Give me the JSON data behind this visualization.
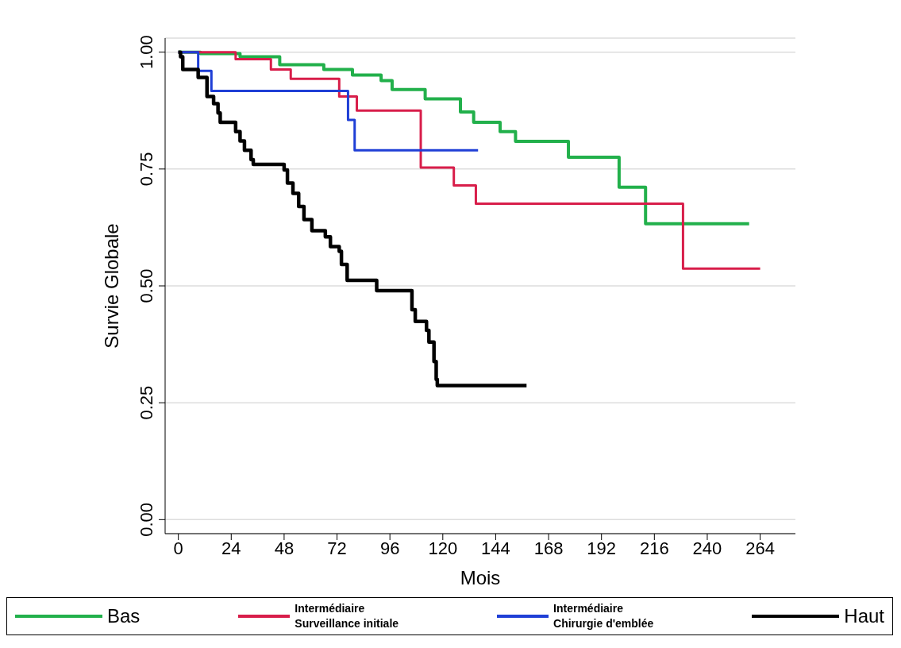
{
  "chart_data": {
    "type": "step",
    "xlabel": "Mois",
    "ylabel": "Survie Globale",
    "xlim": [
      -6,
      280
    ],
    "ylim": [
      -0.03,
      1.03
    ],
    "xticks": [
      0,
      24,
      48,
      72,
      96,
      120,
      144,
      168,
      192,
      216,
      240,
      264
    ],
    "yticks": [
      {
        "value": 0,
        "label": "0.00"
      },
      {
        "value": 0.25,
        "label": "0.25"
      },
      {
        "value": 0.5,
        "label": "0.50"
      },
      {
        "value": 0.75,
        "label": "0.75"
      },
      {
        "value": 1,
        "label": "1.00"
      }
    ],
    "grid": "y",
    "legend": "bottom",
    "marker": "none",
    "line_style": "solid",
    "series": [
      {
        "name": "Bas",
        "color": "#22b04b",
        "x": [
          0,
          10,
          28,
          46,
          66,
          79,
          92,
          97,
          112,
          128,
          134,
          146,
          153,
          177,
          200,
          212,
          259
        ],
        "values": [
          1,
          0.997,
          0.99,
          0.973,
          0.963,
          0.951,
          0.939,
          0.92,
          0.9,
          0.872,
          0.85,
          0.83,
          0.809,
          0.775,
          0.711,
          0.633,
          0.633
        ]
      },
      {
        "name": "Intermédiaire\nSurveillance initiale",
        "color": "#d81e4a",
        "x": [
          0,
          26,
          42,
          51,
          73,
          81,
          110,
          125,
          135,
          229,
          264
        ],
        "values": [
          1,
          0.985,
          0.963,
          0.943,
          0.905,
          0.875,
          0.753,
          0.715,
          0.676,
          0.537,
          0.537
        ]
      },
      {
        "name": "Intermédiaire\nChirurgie d'emblée",
        "color": "#1f3fd6",
        "x": [
          0,
          9,
          15,
          77,
          80,
          136
        ],
        "values": [
          1,
          0.96,
          0.917,
          0.855,
          0.79,
          0.79
        ]
      },
      {
        "name": "Haut",
        "color": "#000000",
        "x": [
          0,
          1,
          2,
          9,
          13,
          16,
          18,
          19,
          20,
          26,
          28,
          30,
          33,
          34,
          48,
          49.5,
          52,
          54.6,
          57,
          60.6,
          66.7,
          69,
          73,
          74,
          76.6,
          90,
          106,
          107.5,
          112.6,
          113.7,
          116,
          117,
          117.5,
          158
        ],
        "values": [
          1,
          0.99,
          0.963,
          0.946,
          0.905,
          0.89,
          0.87,
          0.85,
          0.85,
          0.83,
          0.81,
          0.79,
          0.77,
          0.76,
          0.748,
          0.72,
          0.698,
          0.67,
          0.642,
          0.618,
          0.605,
          0.584,
          0.574,
          0.546,
          0.512,
          0.49,
          0.449,
          0.424,
          0.405,
          0.38,
          0.338,
          0.3,
          0.287,
          0.287
        ]
      }
    ]
  }
}
